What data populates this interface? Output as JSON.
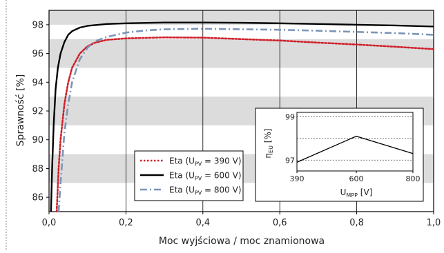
{
  "chart_data": [
    {
      "type": "line",
      "xlabel": "Moc wyjściowa / moc znamionowa",
      "ylabel": "Sprawność [%]",
      "xlim": [
        0,
        1
      ],
      "ylim": [
        85,
        99
      ],
      "x_ticks": [
        "0,0",
        "0,2",
        "0,4",
        "0,6",
        "0,8",
        "1,0"
      ],
      "y_ticks": [
        "86",
        "88",
        "90",
        "92",
        "94",
        "96",
        "98"
      ],
      "grid": "alternating horizontal bands, vertical lines",
      "legend_position": "lower-left of inset area",
      "legend": [
        {
          "label": "Eta (U",
          "sub": "PV",
          "tail": " = 390 V)",
          "color": "#d0202a",
          "style": "dotted"
        },
        {
          "label": "Eta (U",
          "sub": "PV",
          "tail": " = 600 V)",
          "color": "#000000",
          "style": "solid"
        },
        {
          "label": "Eta (U",
          "sub": "PV",
          "tail": " = 800 V)",
          "color": "#7a95b8",
          "style": "dashdot"
        }
      ],
      "series": [
        {
          "color": "#d0202a",
          "style": "dotted",
          "x": [
            0.02,
            0.025,
            0.03,
            0.04,
            0.05,
            0.06,
            0.08,
            0.1,
            0.12,
            0.15,
            0.2,
            0.3,
            0.4,
            0.5,
            0.6,
            0.7,
            0.8,
            0.9,
            1.0
          ],
          "y": [
            85.0,
            88.0,
            90.0,
            92.5,
            94.0,
            95.0,
            96.0,
            96.5,
            96.75,
            96.95,
            97.05,
            97.12,
            97.1,
            97.0,
            96.9,
            96.75,
            96.62,
            96.47,
            96.3
          ]
        },
        {
          "color": "#000000",
          "style": "solid",
          "x": [
            0.005,
            0.008,
            0.012,
            0.017,
            0.023,
            0.03,
            0.04,
            0.05,
            0.06,
            0.08,
            0.1,
            0.15,
            0.2,
            0.3,
            0.4,
            0.5,
            0.6,
            0.7,
            0.8,
            0.9,
            1.0
          ],
          "y": [
            85.0,
            88.0,
            91.0,
            93.5,
            95.0,
            96.0,
            96.8,
            97.3,
            97.55,
            97.8,
            97.92,
            98.05,
            98.1,
            98.15,
            98.15,
            98.13,
            98.1,
            98.05,
            98.0,
            97.95,
            97.88
          ]
        },
        {
          "color": "#7a95b8",
          "style": "dashdot",
          "x": [
            0.025,
            0.03,
            0.04,
            0.05,
            0.06,
            0.08,
            0.1,
            0.12,
            0.15,
            0.2,
            0.25,
            0.3,
            0.4,
            0.5,
            0.6,
            0.7,
            0.8,
            0.9,
            1.0
          ],
          "y": [
            85.0,
            87.0,
            90.5,
            92.5,
            94.0,
            95.6,
            96.4,
            96.85,
            97.15,
            97.45,
            97.6,
            97.68,
            97.72,
            97.68,
            97.65,
            97.58,
            97.5,
            97.42,
            97.3
          ]
        }
      ]
    },
    {
      "type": "line",
      "ylabel": "η",
      "ylabel_sub": "EU",
      "ylabel_tail": " [%]",
      "xlabel": "U",
      "xlabel_sub": "MPP",
      "xlabel_tail": " [V]",
      "xlim": [
        390,
        800
      ],
      "ylim": [
        96.5,
        99.2
      ],
      "x_ticks": [
        "390",
        "600",
        "800"
      ],
      "y_ticks": [
        "97",
        "99"
      ],
      "grid": "dashed horizontal lines",
      "series": [
        {
          "color": "#000000",
          "x": [
            390,
            600,
            800
          ],
          "y": [
            96.9,
            98.1,
            97.3
          ]
        }
      ]
    }
  ]
}
